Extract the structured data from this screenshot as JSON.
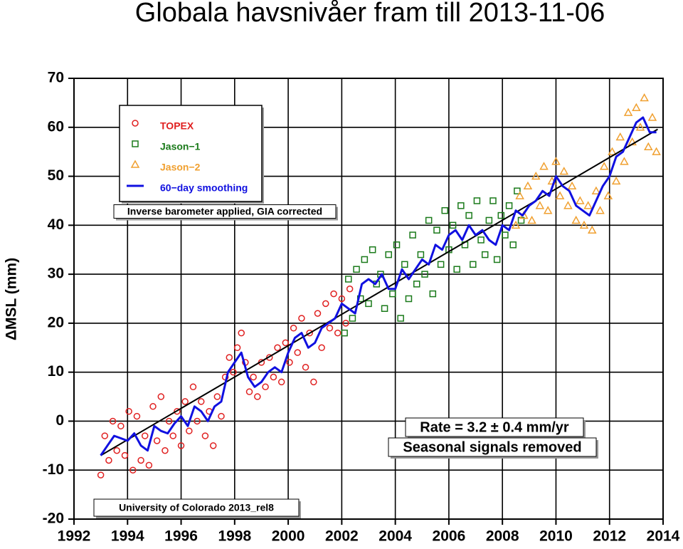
{
  "chart_data": {
    "type": "scatter",
    "title": "Globala havsnivåer fram till 2013-11-06",
    "ylabel": "ΔMSL (mm)",
    "xlim": [
      1992,
      2014
    ],
    "xticks": [
      1992,
      1994,
      1996,
      1998,
      2000,
      2002,
      2004,
      2006,
      2008,
      2010,
      2012,
      2014
    ],
    "ylim": [
      -20,
      70
    ],
    "yticks": [
      -20,
      -10,
      0,
      10,
      20,
      30,
      40,
      50,
      60,
      70
    ],
    "grid": true,
    "legend": "upper left",
    "annotations": [
      "Inverse barometer applied, GIA corrected",
      "Rate = 3.2 ± 0.4 mm/yr",
      "Seasonal signals removed",
      "University of Colorado 2013_rel8"
    ],
    "series": [
      {
        "name": "TOPEX",
        "color": "#e02020",
        "marker": "circle",
        "x": [
          1993.0,
          1993.15,
          1993.3,
          1993.45,
          1993.6,
          1993.75,
          1993.9,
          1994.05,
          1994.2,
          1994.35,
          1994.5,
          1994.65,
          1994.8,
          1994.95,
          1995.1,
          1995.25,
          1995.4,
          1995.55,
          1995.7,
          1995.85,
          1996.0,
          1996.15,
          1996.3,
          1996.45,
          1996.6,
          1996.75,
          1996.9,
          1997.05,
          1997.2,
          1997.35,
          1997.5,
          1997.65,
          1997.8,
          1997.95,
          1998.1,
          1998.25,
          1998.4,
          1998.55,
          1998.7,
          1998.85,
          1999.0,
          1999.15,
          1999.3,
          1999.45,
          1999.6,
          1999.75,
          1999.9,
          2000.05,
          2000.2,
          2000.35,
          2000.5,
          2000.65,
          2000.8,
          2000.95,
          2001.1,
          2001.25,
          2001.4,
          2001.55,
          2001.7,
          2001.85,
          2002.0,
          2002.15,
          2002.3
        ],
        "values": [
          -11,
          -3,
          -8,
          0,
          -6,
          -1,
          -7,
          2,
          -10,
          1,
          -8,
          -3,
          -9,
          3,
          -4,
          5,
          -6,
          0,
          -3,
          2,
          -5,
          4,
          -2,
          7,
          0,
          4,
          -3,
          2,
          -5,
          5,
          1,
          9,
          13,
          10,
          15,
          18,
          12,
          6,
          9,
          5,
          12,
          7,
          13,
          9,
          15,
          8,
          16,
          12,
          19,
          14,
          21,
          11,
          18,
          8,
          22,
          15,
          24,
          19,
          26,
          18,
          25,
          20,
          27
        ]
      },
      {
        "name": "Jason−1",
        "color": "#1a7a1a",
        "marker": "square",
        "x": [
          2002.1,
          2002.25,
          2002.4,
          2002.55,
          2002.7,
          2002.85,
          2003.0,
          2003.15,
          2003.3,
          2003.45,
          2003.6,
          2003.75,
          2003.9,
          2004.05,
          2004.2,
          2004.35,
          2004.5,
          2004.65,
          2004.8,
          2004.95,
          2005.1,
          2005.25,
          2005.4,
          2005.55,
          2005.7,
          2005.85,
          2006.0,
          2006.15,
          2006.3,
          2006.45,
          2006.6,
          2006.75,
          2006.9,
          2007.05,
          2007.2,
          2007.35,
          2007.5,
          2007.65,
          2007.8,
          2007.95,
          2008.1,
          2008.25,
          2008.4,
          2008.55,
          2008.7
        ],
        "values": [
          18,
          29,
          21,
          31,
          25,
          33,
          24,
          35,
          28,
          30,
          23,
          34,
          26,
          36,
          21,
          32,
          25,
          38,
          28,
          34,
          30,
          41,
          26,
          39,
          32,
          43,
          35,
          40,
          31,
          44,
          36,
          42,
          32,
          45,
          37,
          34,
          41,
          45,
          33,
          42,
          38,
          44,
          36,
          47,
          41
        ]
      },
      {
        "name": "Jason−2",
        "color": "#f0a030",
        "marker": "triangle",
        "x": [
          2008.5,
          2008.65,
          2008.8,
          2008.95,
          2009.1,
          2009.25,
          2009.4,
          2009.55,
          2009.7,
          2009.85,
          2010.0,
          2010.15,
          2010.3,
          2010.45,
          2010.6,
          2010.75,
          2010.9,
          2011.05,
          2011.2,
          2011.35,
          2011.5,
          2011.65,
          2011.8,
          2011.95,
          2012.1,
          2012.25,
          2012.4,
          2012.55,
          2012.7,
          2012.85,
          2013.0,
          2013.15,
          2013.3,
          2013.45,
          2013.6,
          2013.75
        ],
        "values": [
          40,
          46,
          42,
          48,
          41,
          50,
          44,
          52,
          43,
          49,
          53,
          46,
          51,
          44,
          48,
          41,
          45,
          40,
          44,
          39,
          47,
          43,
          52,
          46,
          55,
          49,
          58,
          53,
          63,
          57,
          64,
          60,
          66,
          56,
          62,
          55
        ]
      },
      {
        "name": "60−day smoothing",
        "color": "#1010e0",
        "marker": "line",
        "x": [
          1993.0,
          1993.25,
          1993.5,
          1993.75,
          1994.0,
          1994.25,
          1994.5,
          1994.75,
          1995.0,
          1995.25,
          1995.5,
          1995.75,
          1996.0,
          1996.25,
          1996.5,
          1996.75,
          1997.0,
          1997.25,
          1997.5,
          1997.75,
          1998.0,
          1998.25,
          1998.5,
          1998.75,
          1999.0,
          1999.25,
          1999.5,
          1999.75,
          2000.0,
          2000.25,
          2000.5,
          2000.75,
          2001.0,
          2001.25,
          2001.5,
          2001.75,
          2002.0,
          2002.25,
          2002.5,
          2002.75,
          2003.0,
          2003.25,
          2003.5,
          2003.75,
          2004.0,
          2004.25,
          2004.5,
          2004.75,
          2005.0,
          2005.25,
          2005.5,
          2005.75,
          2006.0,
          2006.25,
          2006.5,
          2006.75,
          2007.0,
          2007.25,
          2007.5,
          2007.75,
          2008.0,
          2008.25,
          2008.5,
          2008.75,
          2009.0,
          2009.25,
          2009.5,
          2009.75,
          2010.0,
          2010.25,
          2010.5,
          2010.75,
          2011.0,
          2011.25,
          2011.5,
          2011.75,
          2012.0,
          2012.25,
          2012.5,
          2012.75,
          2013.0,
          2013.25,
          2013.5,
          2013.75
        ],
        "values": [
          -7,
          -5,
          -3,
          -3.5,
          -4,
          -2.5,
          -5,
          -6,
          -1,
          -2,
          -2.5,
          -0.5,
          1,
          -1,
          3,
          2,
          0,
          3,
          4,
          10,
          12,
          14,
          9,
          7,
          8,
          10,
          11,
          10,
          14,
          17,
          18,
          15,
          16,
          19,
          20,
          21,
          24,
          23,
          22,
          28,
          29,
          28,
          30,
          27,
          27,
          31,
          29,
          31,
          33,
          32,
          36,
          35,
          38,
          39,
          37,
          40,
          38,
          39,
          37,
          36,
          40,
          39,
          43,
          42,
          44,
          45,
          47,
          46,
          50,
          48,
          47,
          44,
          43,
          42,
          45,
          48,
          50,
          54,
          55,
          58,
          61,
          62,
          59,
          59
        ]
      }
    ],
    "trend_line": {
      "color": "#000000",
      "x": [
        1993,
        2013.8
      ],
      "values": [
        -7,
        59.6
      ]
    }
  }
}
